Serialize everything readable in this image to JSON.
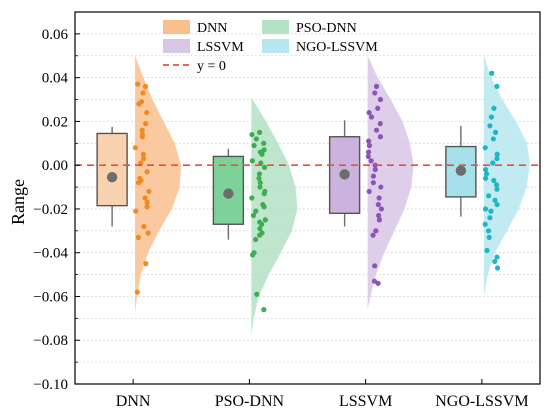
{
  "chart_data": {
    "type": "raincloud",
    "title": "",
    "xlabel": "",
    "ylabel": "Range",
    "ylim": [
      -0.1,
      0.07
    ],
    "yticks": [
      {
        "v": 0.06,
        "label": "0.06"
      },
      {
        "v": 0.04,
        "label": "0.04"
      },
      {
        "v": 0.02,
        "label": "0.02"
      },
      {
        "v": 0.0,
        "label": "0.00"
      },
      {
        "v": -0.02,
        "label": "−0.02"
      },
      {
        "v": -0.04,
        "label": "−0.04"
      },
      {
        "v": -0.06,
        "label": "−0.06"
      },
      {
        "v": -0.08,
        "label": "−0.08"
      },
      {
        "v": -0.1,
        "label": "−0.10"
      }
    ],
    "grid": true,
    "legend_position": "top-center",
    "reference_line": {
      "label": "y = 0",
      "value": 0.0,
      "color": "#e8503a"
    },
    "categories": [
      "DNN",
      "PSO-DNN",
      "LSSVM",
      "NGO-LSSVM"
    ],
    "series": [
      {
        "name": "DNN",
        "fill": "#f9c08e",
        "box_fill": "#f9d3b0",
        "point_color": "#f08a24",
        "box": {
          "q1": -0.0185,
          "median": -0.006,
          "q3": 0.0145,
          "whisker_low": -0.028,
          "whisker_high": 0.0175,
          "mean": -0.0055
        },
        "points": [
          0.037,
          0.036,
          0.033,
          0.029,
          0.028,
          0.024,
          0.019,
          0.016,
          0.014,
          0.013,
          0.008,
          0.005,
          0.003,
          0.001,
          -0.003,
          -0.006,
          -0.007,
          -0.008,
          -0.012,
          -0.015,
          -0.017,
          -0.019,
          -0.021,
          -0.028,
          -0.031,
          -0.033,
          -0.045,
          -0.058
        ],
        "density": [
          [
            -0.068,
            0.0
          ],
          [
            -0.06,
            0.04
          ],
          [
            -0.05,
            0.12
          ],
          [
            -0.04,
            0.28
          ],
          [
            -0.03,
            0.52
          ],
          [
            -0.02,
            0.8
          ],
          [
            -0.01,
            0.97
          ],
          [
            0.0,
            1.0
          ],
          [
            0.01,
            0.86
          ],
          [
            0.02,
            0.62
          ],
          [
            0.03,
            0.38
          ],
          [
            0.04,
            0.18
          ],
          [
            0.05,
            0.0
          ]
        ]
      },
      {
        "name": "PSO-DNN",
        "fill": "#b4e2c4",
        "box_fill": "#7fd19a",
        "point_color": "#3cae4f",
        "box": {
          "q1": -0.027,
          "median": -0.01,
          "q3": 0.004,
          "whisker_low": -0.034,
          "whisker_high": 0.0075,
          "mean": -0.013
        },
        "points": [
          0.015,
          0.014,
          0.012,
          0.01,
          0.009,
          0.007,
          0.006,
          0.005,
          0.002,
          0.001,
          -0.001,
          -0.004,
          -0.006,
          -0.008,
          -0.01,
          -0.012,
          -0.013,
          -0.015,
          -0.018,
          -0.019,
          -0.021,
          -0.023,
          -0.025,
          -0.026,
          -0.027,
          -0.029,
          -0.031,
          -0.032,
          -0.034,
          -0.04,
          -0.041,
          -0.059,
          -0.066
        ],
        "density": [
          [
            -0.078,
            0.0
          ],
          [
            -0.07,
            0.05
          ],
          [
            -0.06,
            0.16
          ],
          [
            -0.05,
            0.38
          ],
          [
            -0.04,
            0.64
          ],
          [
            -0.03,
            0.88
          ],
          [
            -0.02,
            1.0
          ],
          [
            -0.01,
            0.96
          ],
          [
            0.0,
            0.82
          ],
          [
            0.01,
            0.58
          ],
          [
            0.02,
            0.32
          ],
          [
            0.031,
            0.0
          ]
        ]
      },
      {
        "name": "LSSVM",
        "fill": "#d9c6e6",
        "box_fill": "#cbb3de",
        "point_color": "#8a55b8",
        "box": {
          "q1": -0.022,
          "median": -0.004,
          "q3": 0.013,
          "whisker_low": -0.028,
          "whisker_high": 0.0205,
          "mean": -0.0042
        },
        "points": [
          0.036,
          0.033,
          0.03,
          0.026,
          0.024,
          0.022,
          0.019,
          0.016,
          0.013,
          0.011,
          0.009,
          0.006,
          0.004,
          0.002,
          0.0,
          -0.002,
          -0.005,
          -0.008,
          -0.01,
          -0.012,
          -0.015,
          -0.018,
          -0.02,
          -0.023,
          -0.025,
          -0.03,
          -0.032,
          -0.046,
          -0.053,
          -0.054
        ],
        "density": [
          [
            -0.066,
            0.0
          ],
          [
            -0.06,
            0.06
          ],
          [
            -0.05,
            0.18
          ],
          [
            -0.04,
            0.36
          ],
          [
            -0.03,
            0.58
          ],
          [
            -0.02,
            0.8
          ],
          [
            -0.01,
            0.95
          ],
          [
            0.0,
            1.0
          ],
          [
            0.01,
            0.92
          ],
          [
            0.02,
            0.76
          ],
          [
            0.03,
            0.5
          ],
          [
            0.04,
            0.22
          ],
          [
            0.05,
            0.0
          ]
        ]
      },
      {
        "name": "NGO-LSSVM",
        "fill": "#b6e7ee",
        "box_fill": "#a6e0ea",
        "point_color": "#1fb5c6",
        "box": {
          "q1": -0.0145,
          "median": -0.002,
          "q3": 0.0085,
          "whisker_low": -0.0235,
          "whisker_high": 0.018,
          "mean": -0.0025
        },
        "points": [
          0.042,
          0.036,
          0.026,
          0.022,
          0.018,
          0.015,
          0.012,
          0.008,
          0.005,
          0.003,
          0.001,
          -0.002,
          -0.004,
          -0.006,
          -0.007,
          -0.009,
          -0.011,
          -0.014,
          -0.016,
          -0.018,
          -0.02,
          -0.021,
          -0.024,
          -0.027,
          -0.03,
          -0.033,
          -0.039,
          -0.042,
          -0.044,
          -0.047
        ],
        "density": [
          [
            -0.06,
            0.0
          ],
          [
            -0.05,
            0.08
          ],
          [
            -0.04,
            0.24
          ],
          [
            -0.03,
            0.5
          ],
          [
            -0.02,
            0.76
          ],
          [
            -0.01,
            0.93
          ],
          [
            0.0,
            1.0
          ],
          [
            0.01,
            0.94
          ],
          [
            0.02,
            0.7
          ],
          [
            0.03,
            0.4
          ],
          [
            0.04,
            0.16
          ],
          [
            0.05,
            0.0
          ]
        ]
      }
    ]
  }
}
